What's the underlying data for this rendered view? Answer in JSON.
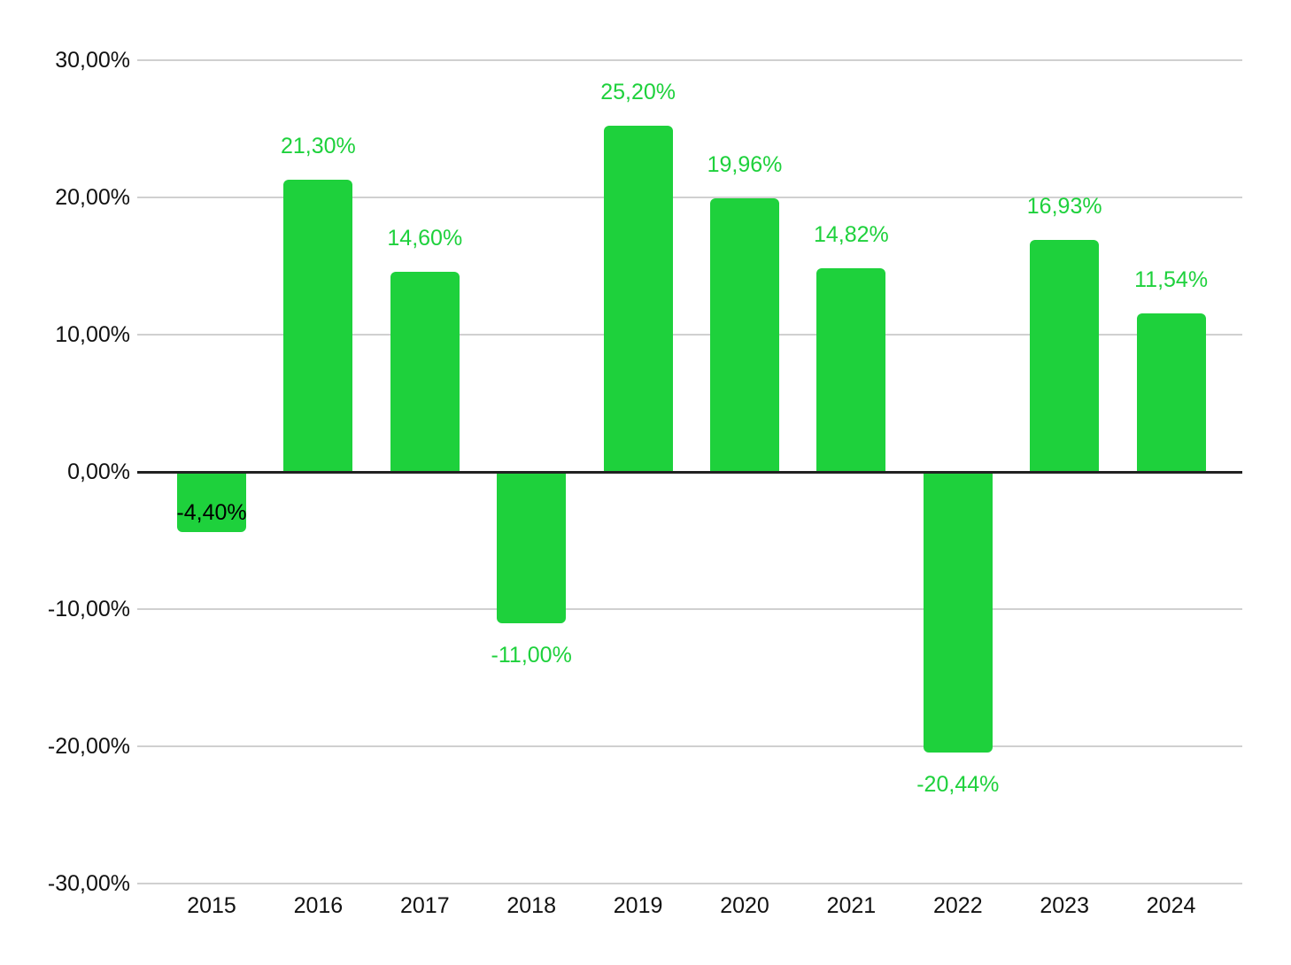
{
  "chart_data": {
    "type": "bar",
    "title": "",
    "xlabel": "",
    "ylabel": "",
    "categories": [
      "2015",
      "2016",
      "2017",
      "2018",
      "2019",
      "2020",
      "2021",
      "2022",
      "2023",
      "2024"
    ],
    "values": [
      -4.4,
      21.3,
      14.6,
      -11.0,
      25.2,
      19.96,
      14.82,
      -20.44,
      16.93,
      11.54
    ],
    "value_labels": [
      "-4,40%",
      "21,30%",
      "14,60%",
      "-11,00%",
      "25,20%",
      "19,96%",
      "14,82%",
      "-20,44%",
      "16,93%",
      "11,54%"
    ],
    "label_placements": [
      "inside",
      "above",
      "above",
      "below",
      "above",
      "above",
      "above",
      "below",
      "above",
      "above"
    ],
    "ylim": [
      -30,
      30
    ],
    "yticks": [
      30,
      20,
      10,
      0,
      -10,
      -20,
      -30
    ],
    "ytick_labels": [
      "30,00%",
      "20,00%",
      "10,00%",
      "0,00%",
      "-10,00%",
      "-20,00%",
      "-30,00%"
    ],
    "grid": true,
    "legend_position": "none",
    "number_format": "percent-comma-decimal",
    "colors": {
      "bar": "#1ED13C",
      "value_label_green": "#1ED13C",
      "value_label_inside": "#000000",
      "gridline": "#d0d0d0",
      "zero_line": "#212121",
      "axis_text": "#111111",
      "background": "#ffffff"
    }
  }
}
